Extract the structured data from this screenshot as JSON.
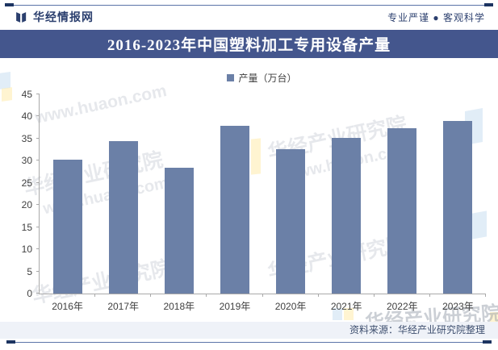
{
  "header": {
    "site_name": "华经情报网",
    "slogan": "专业严谨 ● 客观科学"
  },
  "title": "2016-2023年中国塑料加工专用设备产量",
  "legend": {
    "label": "产量（万台）"
  },
  "chart_data": {
    "type": "bar",
    "title": "2016-2023年中国塑料加工专用设备产量",
    "categories": [
      "2016年",
      "2017年",
      "2018年",
      "2019年",
      "2020年",
      "2021年",
      "2022年",
      "2023年"
    ],
    "series": [
      {
        "name": "产量（万台）",
        "values": [
          30.2,
          34.4,
          28.5,
          37.9,
          32.7,
          35.2,
          37.4,
          39.0
        ]
      }
    ],
    "xlabel": "",
    "ylabel": "",
    "ylim": [
      0,
      45
    ],
    "ytick_step": 5,
    "grid": false,
    "legend_position": "top",
    "bar_color": "#6b80a7"
  },
  "footer": {
    "source": "资料来源：华经产业研究院整理"
  },
  "watermark": {
    "brand": "华经产业研究院",
    "url": "www.huaon.com"
  },
  "colors": {
    "title_band": "#44568d",
    "bar": "#6b80a7",
    "header_text": "#2b3f6e",
    "rule_line": "#5b74a8",
    "rule_cap": "#1c3461",
    "axis": "#a9a9a9",
    "tick_text": "#404040",
    "footer_band": "#eff2f8",
    "footer_text": "#3d4e6e"
  }
}
